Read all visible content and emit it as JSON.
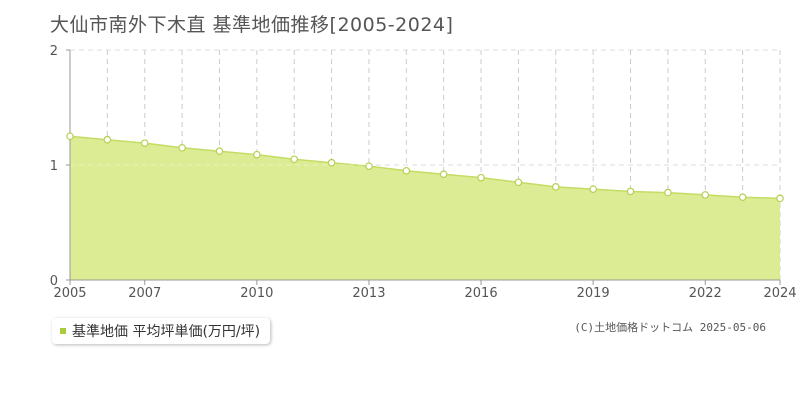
{
  "title": "大仙市南外下木直 基準地価推移[2005-2024]",
  "credit": "(C)土地価格ドットコム 2025-05-06",
  "legend": {
    "label": "基準地価 平均坪単価(万円/坪)"
  },
  "colors": {
    "fill": "#dcec94",
    "line": "#c4dc64",
    "marker_fill": "#ffffff",
    "marker_stroke": "#b4d050",
    "swatch": "#a8cc3c",
    "grid": "#cccccc",
    "axis": "#999999"
  },
  "chart_data": {
    "type": "area",
    "title": "大仙市南外下木直 基準地価推移[2005-2024]",
    "x": [
      2005,
      2006,
      2007,
      2008,
      2009,
      2010,
      2011,
      2012,
      2013,
      2014,
      2015,
      2016,
      2017,
      2018,
      2019,
      2020,
      2021,
      2022,
      2023,
      2024
    ],
    "series": [
      {
        "name": "基準地価 平均坪単価(万円/坪)",
        "values": [
          1.25,
          1.22,
          1.19,
          1.15,
          1.12,
          1.09,
          1.05,
          1.02,
          0.99,
          0.95,
          0.92,
          0.89,
          0.85,
          0.81,
          0.79,
          0.77,
          0.76,
          0.74,
          0.72,
          0.71
        ]
      }
    ],
    "xlim": [
      2005,
      2024
    ],
    "ylim": [
      0,
      2
    ],
    "yticks": [
      0,
      1,
      2
    ],
    "xtick_labels": [
      "2005",
      "2007",
      "2010",
      "2013",
      "2016",
      "2019",
      "2022",
      "2024"
    ],
    "grid": true,
    "legend_position": "bottom-left"
  }
}
